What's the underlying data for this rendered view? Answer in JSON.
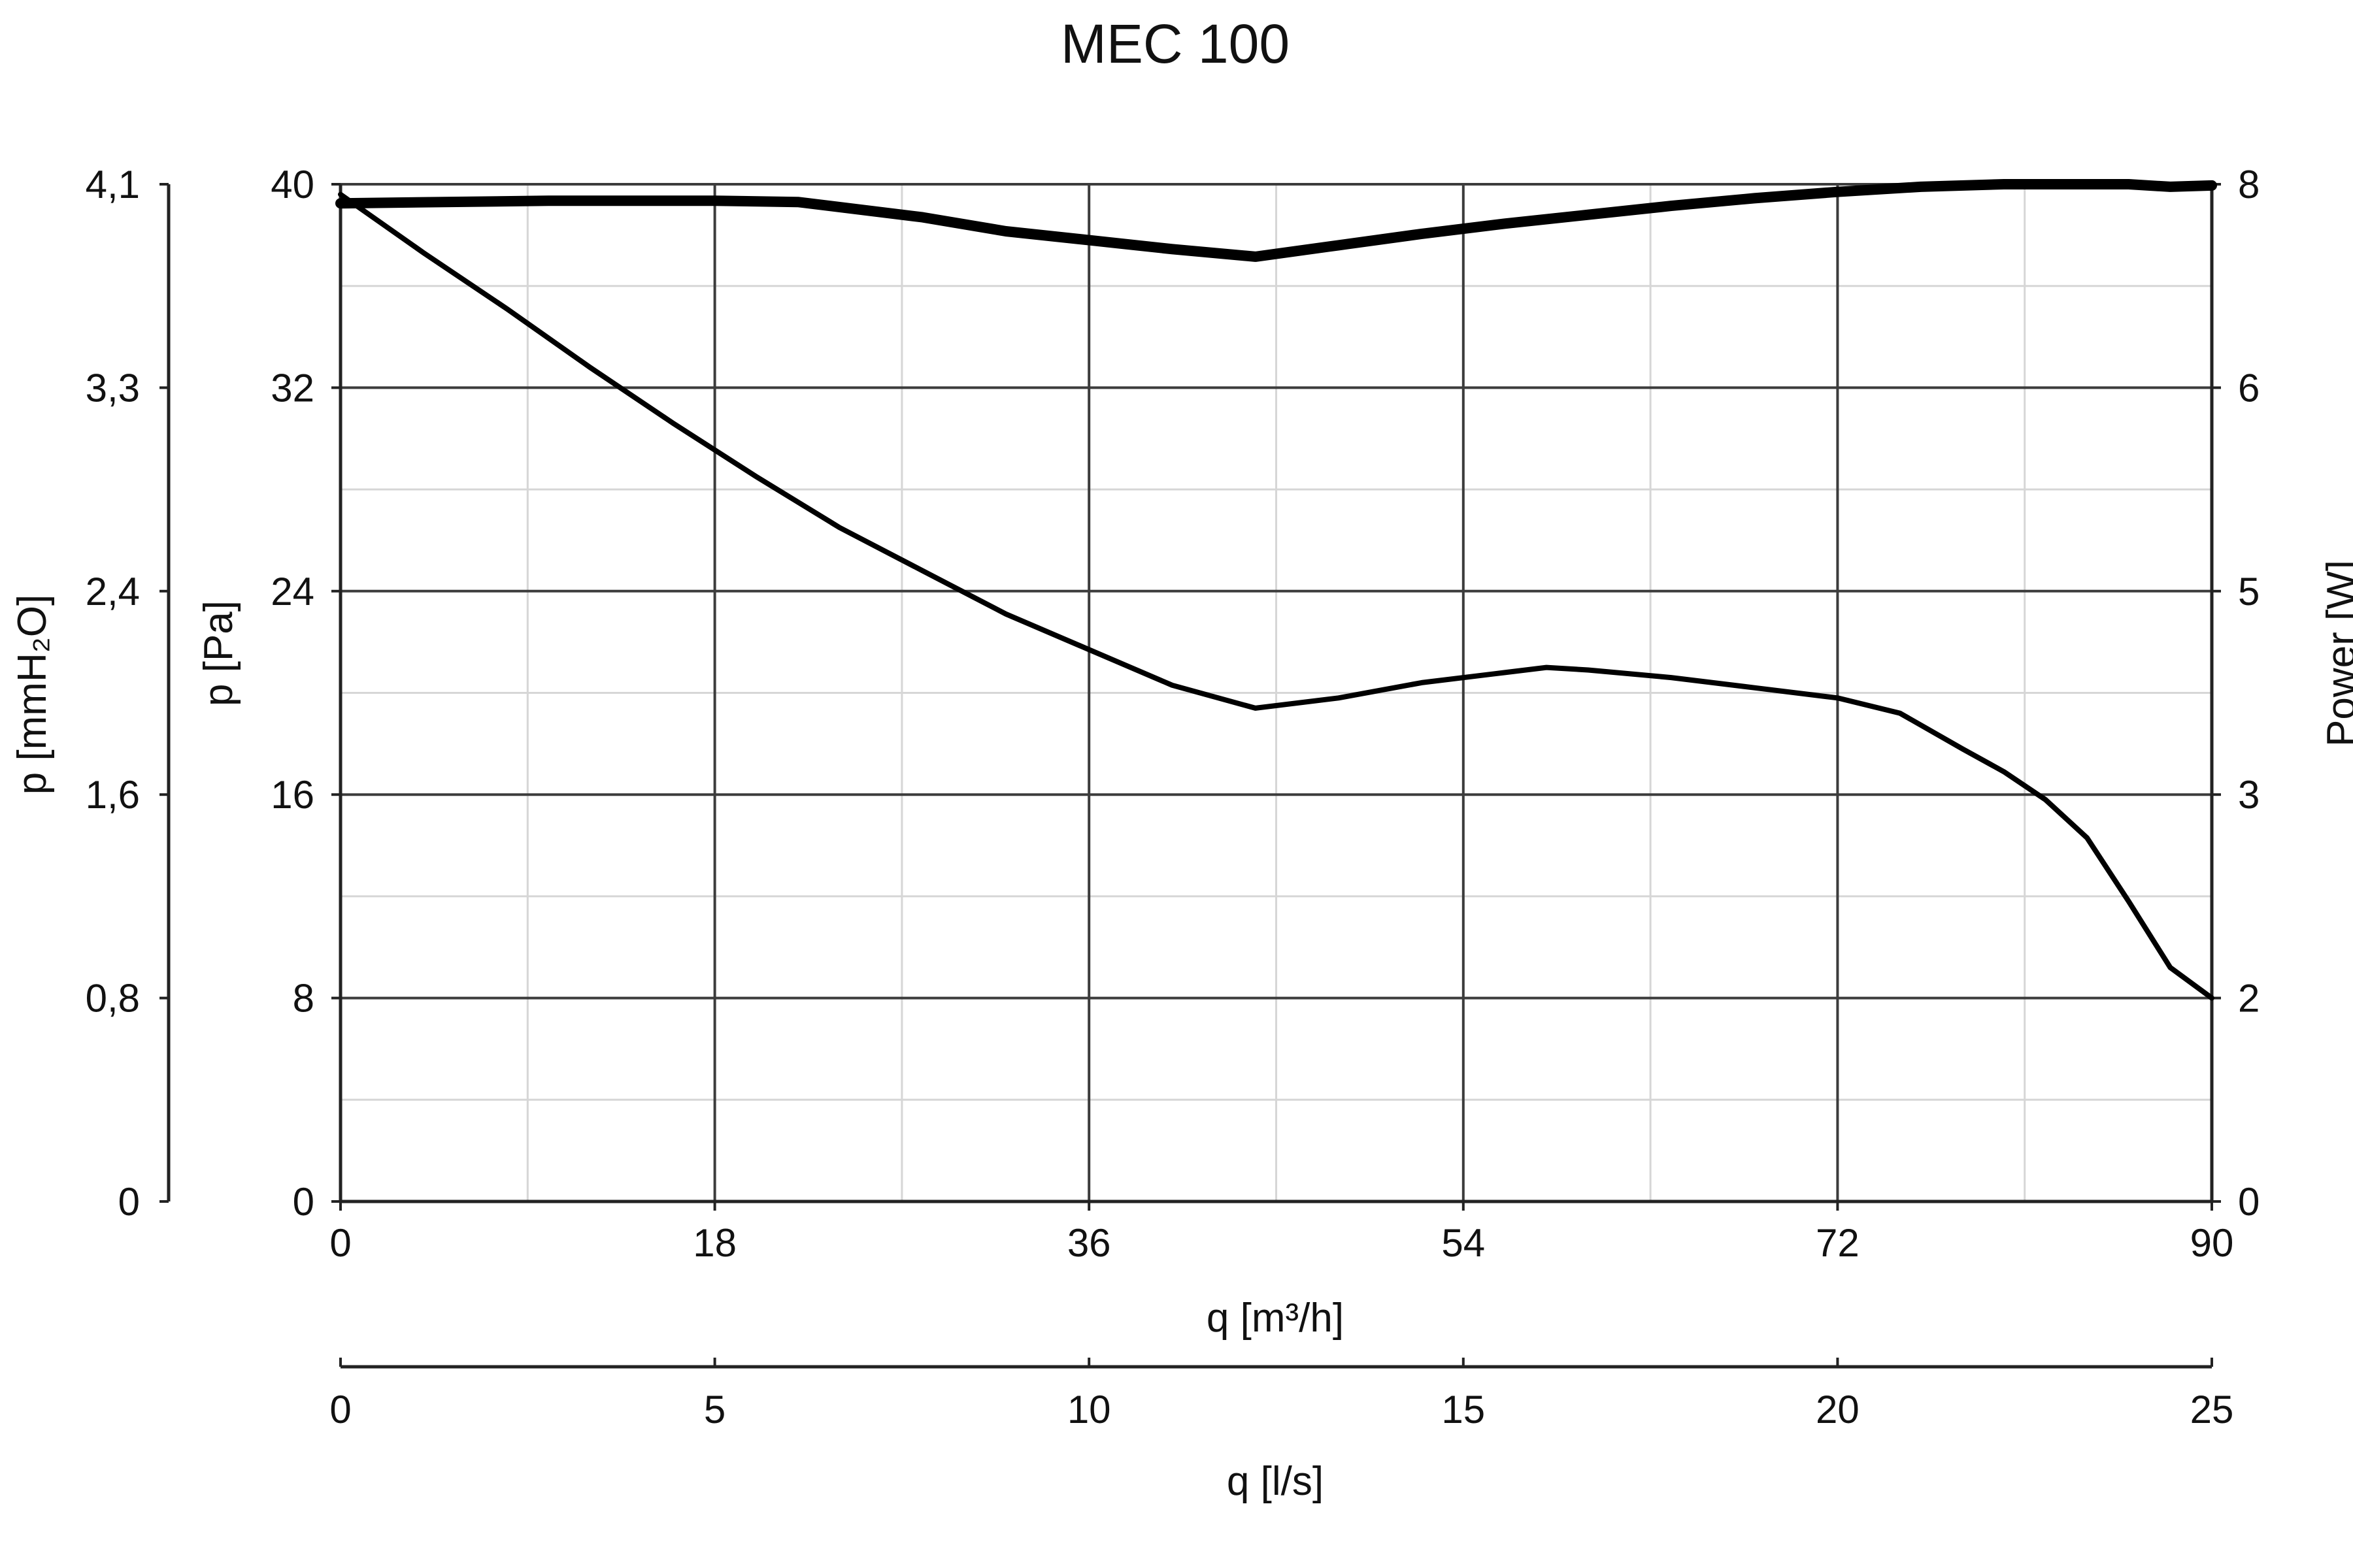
{
  "chart_data": {
    "type": "line",
    "title": "MEC 100",
    "xlabel": "q [m³/h]",
    "xlim": [
      0,
      90
    ],
    "x_ticks": [
      "0",
      "18",
      "36",
      "54",
      "72",
      "90"
    ],
    "x2label": "q [l/s]",
    "x2lim": [
      0,
      25
    ],
    "x2_ticks": [
      "0",
      "5",
      "10",
      "15",
      "20",
      "25"
    ],
    "ylabel": "p [Pa]",
    "ylim": [
      0,
      40
    ],
    "y_ticks": [
      "0",
      "8",
      "16",
      "24",
      "32",
      "40"
    ],
    "y_outer_label": "p [mmH₂O]",
    "y_outer_ticks": [
      "0",
      "0,8",
      "1,6",
      "2,4",
      "3,3",
      "4,1"
    ],
    "y2label": "Power [W]",
    "y2_ticks": [
      "0",
      "2",
      "3",
      "5",
      "6",
      "8"
    ],
    "grid": true,
    "series": [
      {
        "axis": "pressure",
        "line": "thin",
        "x": [
          0,
          4,
          8,
          12,
          16,
          20,
          24,
          28,
          32,
          36,
          40,
          44,
          48,
          52,
          56,
          58,
          60,
          64,
          68,
          72,
          75,
          78,
          80,
          82,
          84,
          86,
          88,
          90
        ],
        "values": [
          39.6,
          37.3,
          35.1,
          32.8,
          30.6,
          28.5,
          26.5,
          24.8,
          23.1,
          21.7,
          20.3,
          19.4,
          19.8,
          20.4,
          20.8,
          21.0,
          20.9,
          20.6,
          20.2,
          19.8,
          19.2,
          17.8,
          16.9,
          15.8,
          14.3,
          11.8,
          9.2,
          8.0
        ]
      },
      {
        "axis": "power",
        "line": "thick",
        "x": [
          0,
          10,
          18,
          22,
          28,
          32,
          36,
          40,
          44,
          48,
          52,
          56,
          60,
          64,
          68,
          72,
          76,
          80,
          86,
          88,
          90
        ],
        "values": [
          7.85,
          7.87,
          7.87,
          7.86,
          7.74,
          7.63,
          7.56,
          7.49,
          7.43,
          7.52,
          7.61,
          7.69,
          7.76,
          7.83,
          7.89,
          7.94,
          7.98,
          8.0,
          8.0,
          7.98,
          7.99
        ]
      }
    ]
  }
}
